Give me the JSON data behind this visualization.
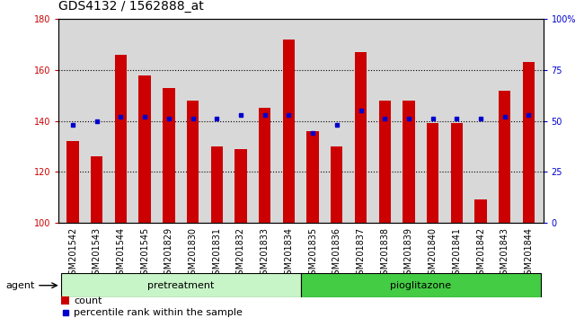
{
  "title": "GDS4132 / 1562888_at",
  "categories": [
    "GSM201542",
    "GSM201543",
    "GSM201544",
    "GSM201545",
    "GSM201829",
    "GSM201830",
    "GSM201831",
    "GSM201832",
    "GSM201833",
    "GSM201834",
    "GSM201835",
    "GSM201836",
    "GSM201837",
    "GSM201838",
    "GSM201839",
    "GSM201840",
    "GSM201841",
    "GSM201842",
    "GSM201843",
    "GSM201844"
  ],
  "count_values": [
    132,
    126,
    166,
    158,
    153,
    148,
    130,
    129,
    145,
    172,
    136,
    130,
    167,
    148,
    148,
    139,
    139,
    109,
    152,
    163
  ],
  "percentile_values": [
    48,
    50,
    52,
    52,
    51,
    51,
    51,
    53,
    53,
    53,
    44,
    48,
    55,
    51,
    51,
    51,
    51,
    51,
    52,
    53
  ],
  "ylim_left": [
    100,
    180
  ],
  "ylim_right": [
    0,
    100
  ],
  "yticks_left": [
    100,
    120,
    140,
    160,
    180
  ],
  "yticks_right": [
    0,
    25,
    50,
    75,
    100
  ],
  "ytick_right_labels": [
    "0",
    "25",
    "50",
    "75",
    "100%"
  ],
  "bar_color": "#cc0000",
  "dot_color": "#0000cc",
  "bar_width": 0.5,
  "pretreatment_label": "pretreatment",
  "pioglitazone_label": "pioglitazone",
  "pretreatment_count": 10,
  "pioglitazone_count": 10,
  "agent_label": "agent",
  "legend_count_label": "count",
  "legend_percentile_label": "percentile rank within the sample",
  "pretreatment_color": "#c8f5c8",
  "pioglitazone_color": "#44cc44",
  "title_fontsize": 10,
  "tick_fontsize": 7,
  "bar_facecolor": "#d8d8d8"
}
